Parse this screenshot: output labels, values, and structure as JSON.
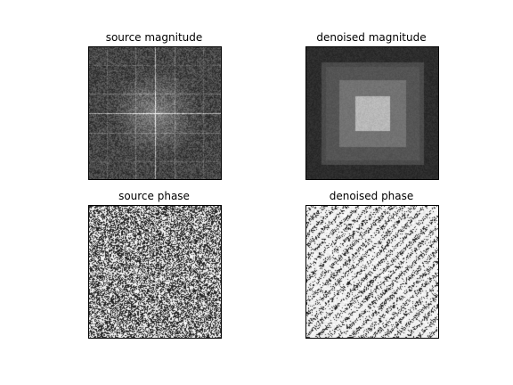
{
  "panels": [
    {
      "id": "src-mag",
      "title": "source magnitude",
      "kind": "magnitude"
    },
    {
      "id": "den-mag",
      "title": "denoised magnitude",
      "kind": "magnitude-denoised"
    },
    {
      "id": "src-ph",
      "title": "source phase",
      "kind": "phase"
    },
    {
      "id": "den-ph",
      "title": "denoised phase",
      "kind": "phase-denoised"
    }
  ]
}
